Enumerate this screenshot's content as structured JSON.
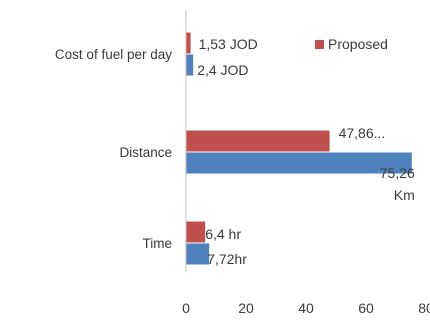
{
  "chart_data": {
    "type": "bar",
    "orientation": "horizontal",
    "categories": [
      "Cost of fuel per day",
      "Distance",
      "Time"
    ],
    "series": [
      {
        "name": "Proposed",
        "color": "#c0504d",
        "values": [
          1.53,
          47.86,
          6.4
        ],
        "labels": [
          "1,53 JOD",
          "47,86...",
          "6,4 hr"
        ]
      },
      {
        "color": "#4f81bd",
        "values": [
          2.4,
          75.26,
          7.72
        ],
        "labels": [
          "2,4 JOD",
          "75,26 Km",
          "7,72hr"
        ]
      }
    ],
    "xlim": [
      0,
      80
    ],
    "xticks": [
      "0",
      "20",
      "40",
      "60",
      "80"
    ],
    "grid": false,
    "legend_position": "top-right"
  }
}
